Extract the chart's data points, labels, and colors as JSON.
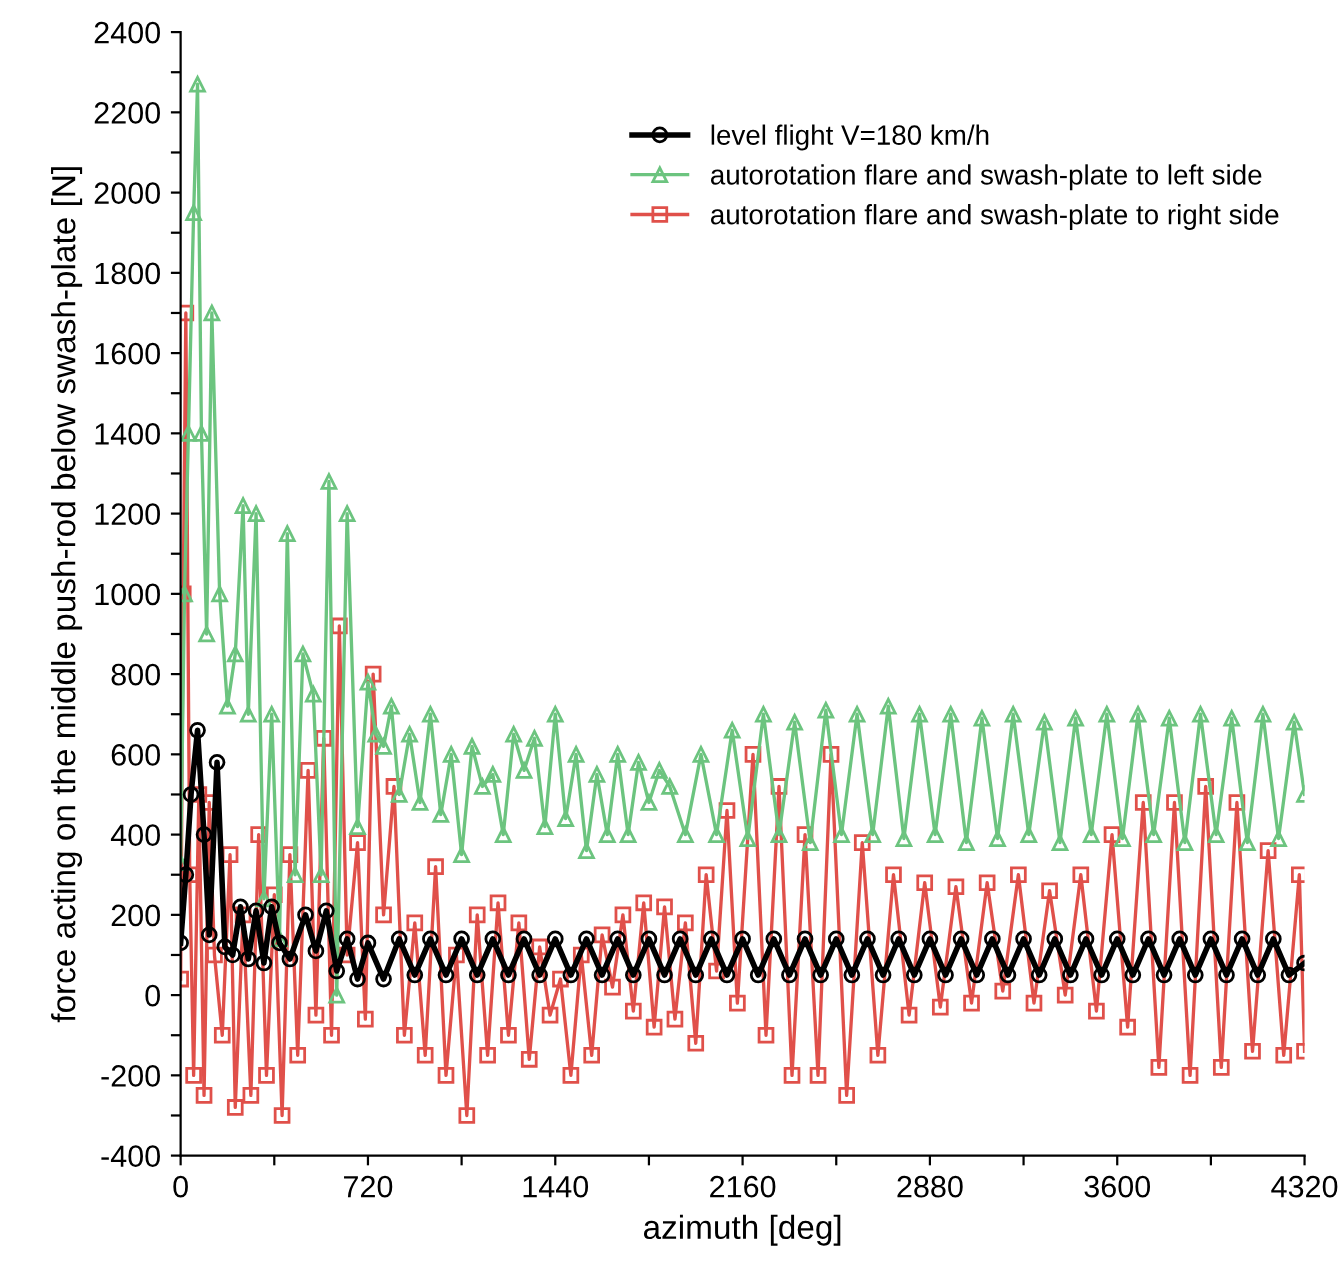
{
  "chart_data": {
    "type": "line",
    "xlabel": "azimuth [deg]",
    "ylabel": "force acting on the middle push-rod below swash-plate [N]",
    "xlim": [
      0,
      4320
    ],
    "ylim": [
      -400,
      2400
    ],
    "xticks": [
      0,
      {
        "value": 360,
        "label": null
      },
      720,
      {
        "value": 1080,
        "label": null
      },
      1440,
      {
        "value": 1800,
        "label": null
      },
      2160,
      {
        "value": 2520,
        "label": null
      },
      2880,
      {
        "value": 3240,
        "label": null
      },
      3600,
      {
        "value": 3960,
        "label": null
      },
      4320
    ],
    "yticks": [
      -400,
      {
        "value": -300,
        "label": null
      },
      -200,
      {
        "value": -100,
        "label": null
      },
      0,
      {
        "value": 100,
        "label": null
      },
      200,
      {
        "value": 300,
        "label": null
      },
      400,
      {
        "value": 500,
        "label": null
      },
      600,
      {
        "value": 700,
        "label": null
      },
      800,
      {
        "value": 900,
        "label": null
      },
      1000,
      {
        "value": 1100,
        "label": null
      },
      1200,
      {
        "value": 1300,
        "label": null
      },
      1400,
      {
        "value": 1500,
        "label": null
      },
      1600,
      {
        "value": 1700,
        "label": null
      },
      1800,
      {
        "value": 1900,
        "label": null
      },
      2000,
      {
        "value": 2100,
        "label": null
      },
      2200,
      {
        "value": 2300,
        "label": null
      },
      2400
    ],
    "grid": false,
    "legend": "top right",
    "line_style": "solid",
    "series": [
      {
        "name": "level flight V=180 km/h",
        "color": "#000000",
        "marker": "circle",
        "x": [
          0,
          20,
          40,
          65,
          90,
          110,
          140,
          170,
          200,
          230,
          260,
          290,
          320,
          350,
          380,
          420,
          480,
          520,
          560,
          600,
          640,
          680,
          720,
          780,
          840,
          900,
          960,
          1020,
          1080,
          1140,
          1200,
          1260,
          1320,
          1380,
          1440,
          1500,
          1560,
          1620,
          1680,
          1740,
          1800,
          1860,
          1920,
          1980,
          2040,
          2100,
          2160,
          2220,
          2280,
          2340,
          2400,
          2460,
          2520,
          2580,
          2640,
          2700,
          2760,
          2820,
          2880,
          2940,
          3000,
          3060,
          3120,
          3180,
          3240,
          3300,
          3360,
          3420,
          3480,
          3540,
          3600,
          3660,
          3720,
          3780,
          3840,
          3900,
          3960,
          4020,
          4080,
          4140,
          4200,
          4260,
          4320
        ],
        "values": [
          130,
          300,
          500,
          660,
          400,
          150,
          580,
          120,
          100,
          220,
          90,
          210,
          80,
          220,
          130,
          90,
          200,
          110,
          210,
          60,
          140,
          40,
          130,
          40,
          140,
          50,
          140,
          50,
          140,
          50,
          140,
          50,
          140,
          50,
          140,
          50,
          140,
          50,
          140,
          50,
          140,
          50,
          140,
          50,
          140,
          50,
          140,
          50,
          140,
          50,
          140,
          50,
          140,
          50,
          140,
          50,
          140,
          50,
          140,
          50,
          140,
          50,
          140,
          50,
          140,
          50,
          140,
          50,
          140,
          50,
          140,
          50,
          140,
          50,
          140,
          50,
          140,
          50,
          140,
          50,
          140,
          50,
          80
        ]
      },
      {
        "name": "autorotation flare and swash-plate to left side",
        "color": "#6cc47f",
        "marker": "triangle",
        "x": [
          0,
          15,
          30,
          50,
          65,
          80,
          100,
          120,
          150,
          180,
          210,
          240,
          260,
          290,
          320,
          350,
          380,
          410,
          440,
          470,
          510,
          540,
          570,
          600,
          640,
          680,
          720,
          750,
          780,
          810,
          840,
          880,
          920,
          960,
          1000,
          1040,
          1080,
          1120,
          1160,
          1200,
          1240,
          1280,
          1320,
          1360,
          1400,
          1440,
          1480,
          1520,
          1560,
          1600,
          1640,
          1680,
          1720,
          1760,
          1800,
          1840,
          1880,
          1940,
          2000,
          2060,
          2120,
          2180,
          2240,
          2300,
          2360,
          2420,
          2480,
          2540,
          2600,
          2660,
          2720,
          2780,
          2840,
          2900,
          2960,
          3020,
          3080,
          3140,
          3200,
          3260,
          3320,
          3380,
          3440,
          3500,
          3560,
          3620,
          3680,
          3740,
          3800,
          3860,
          3920,
          3980,
          4040,
          4100,
          4160,
          4220,
          4280,
          4320
        ],
        "values": [
          330,
          1000,
          1400,
          1950,
          2270,
          1400,
          900,
          1700,
          1000,
          720,
          850,
          1220,
          700,
          1200,
          240,
          700,
          140,
          1150,
          300,
          850,
          750,
          300,
          1280,
          0,
          1200,
          420,
          780,
          650,
          620,
          720,
          500,
          650,
          480,
          700,
          450,
          600,
          350,
          620,
          520,
          550,
          400,
          650,
          560,
          640,
          420,
          700,
          440,
          600,
          360,
          550,
          400,
          600,
          400,
          580,
          480,
          560,
          520,
          400,
          600,
          400,
          660,
          390,
          700,
          400,
          680,
          380,
          710,
          400,
          700,
          400,
          720,
          390,
          700,
          400,
          700,
          380,
          690,
          390,
          700,
          400,
          680,
          380,
          690,
          400,
          700,
          390,
          700,
          400,
          690,
          380,
          700,
          400,
          690,
          380,
          700,
          390,
          680,
          500
        ]
      },
      {
        "name": "autorotation flare and swash-plate to right side",
        "color": "#e0504a",
        "marker": "square",
        "x": [
          0,
          10,
          20,
          35,
          50,
          70,
          90,
          110,
          130,
          160,
          190,
          210,
          240,
          270,
          300,
          330,
          360,
          390,
          420,
          450,
          490,
          520,
          550,
          580,
          610,
          640,
          680,
          710,
          740,
          780,
          820,
          860,
          900,
          940,
          980,
          1020,
          1060,
          1100,
          1140,
          1180,
          1220,
          1260,
          1300,
          1340,
          1380,
          1420,
          1460,
          1500,
          1540,
          1580,
          1620,
          1660,
          1700,
          1740,
          1780,
          1820,
          1860,
          1900,
          1940,
          1980,
          2020,
          2060,
          2100,
          2140,
          2200,
          2250,
          2300,
          2350,
          2400,
          2450,
          2500,
          2560,
          2620,
          2680,
          2740,
          2800,
          2860,
          2920,
          2980,
          3040,
          3100,
          3160,
          3220,
          3280,
          3340,
          3400,
          3460,
          3520,
          3580,
          3640,
          3700,
          3760,
          3820,
          3880,
          3940,
          4000,
          4060,
          4120,
          4180,
          4240,
          4300,
          4320
        ],
        "values": [
          40,
          1000,
          1700,
          300,
          -200,
          500,
          -250,
          480,
          100,
          -100,
          350,
          -280,
          200,
          -250,
          400,
          -200,
          250,
          -300,
          350,
          -150,
          560,
          -50,
          640,
          -100,
          920,
          100,
          380,
          -60,
          800,
          200,
          520,
          -100,
          180,
          -150,
          320,
          -200,
          100,
          -300,
          200,
          -150,
          230,
          -100,
          180,
          -160,
          120,
          -50,
          40,
          -200,
          100,
          -150,
          150,
          20,
          200,
          -40,
          230,
          -80,
          220,
          -60,
          180,
          -120,
          300,
          60,
          460,
          -20,
          600,
          -100,
          520,
          -200,
          400,
          -200,
          600,
          -250,
          380,
          -150,
          300,
          -50,
          280,
          -30,
          270,
          -20,
          280,
          10,
          300,
          -20,
          260,
          0,
          300,
          -40,
          400,
          -80,
          480,
          -180,
          480,
          -200,
          520,
          -180,
          480,
          -140,
          360,
          -150,
          300,
          -140
        ]
      }
    ]
  }
}
